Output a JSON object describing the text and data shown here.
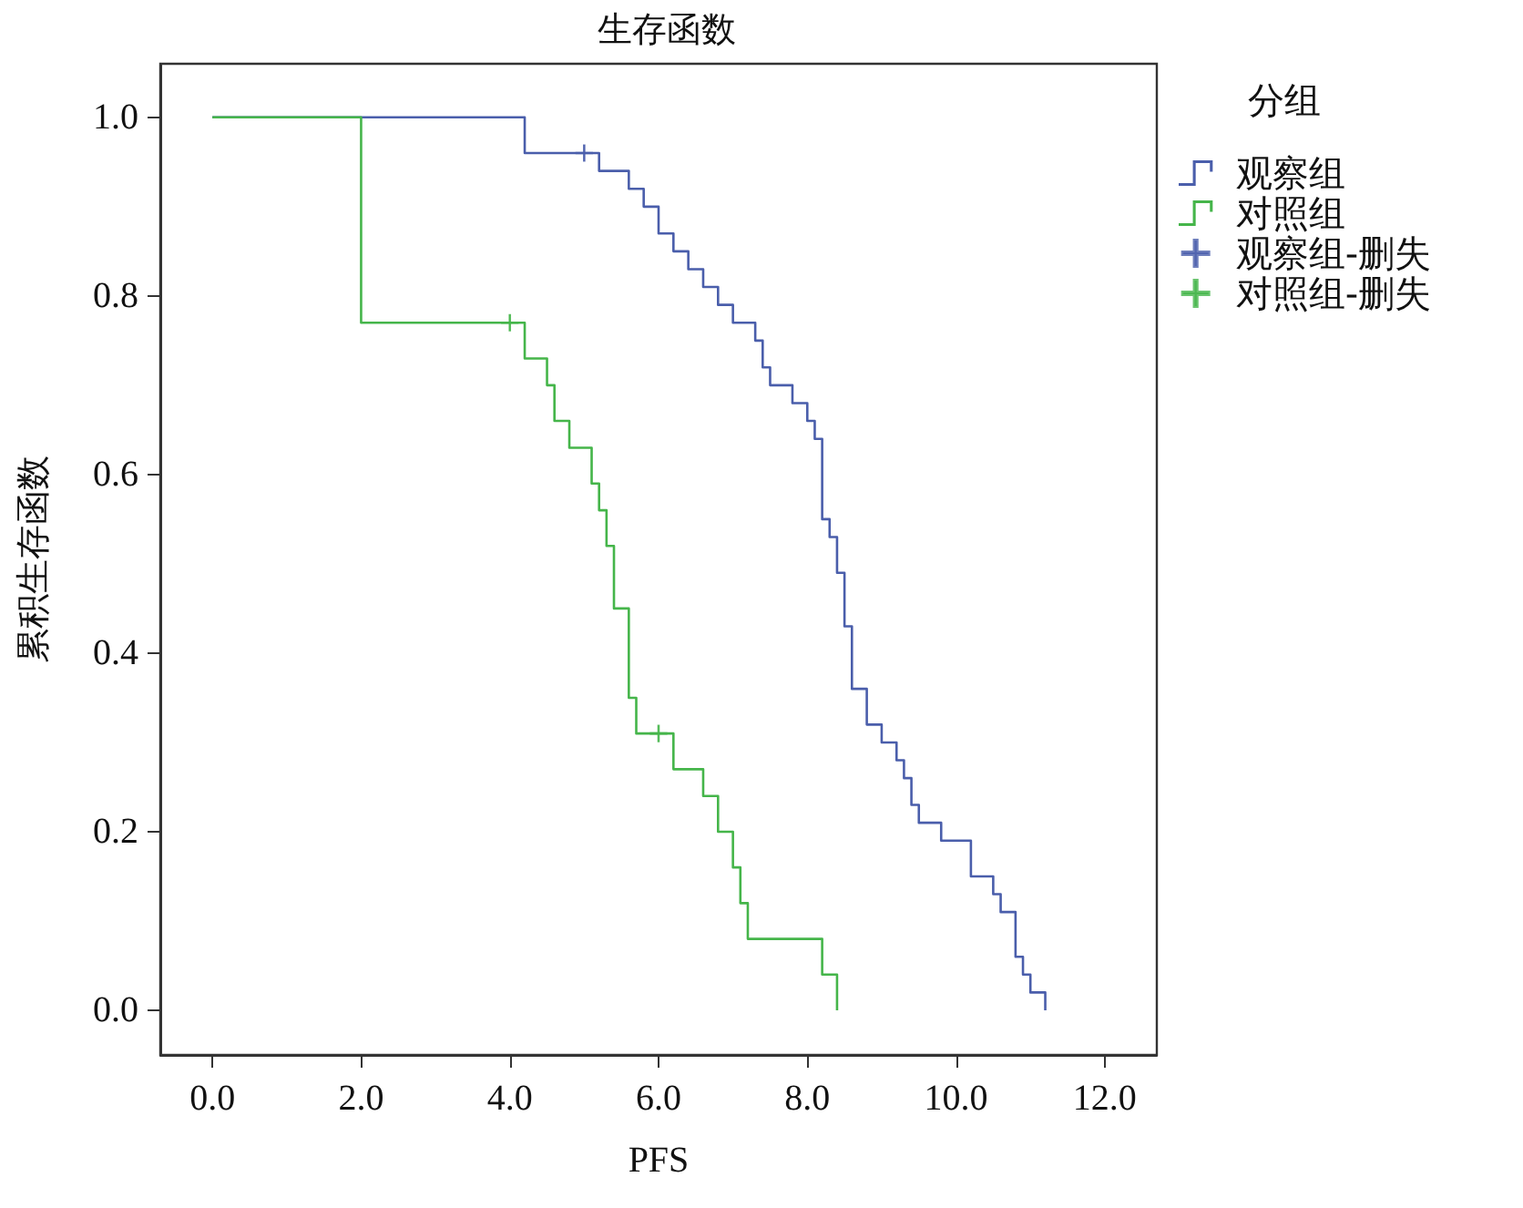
{
  "chart_data": {
    "type": "step",
    "title": "生存函数",
    "xlabel": "PFS",
    "ylabel": "累积生存函数",
    "legend_title": "分组",
    "legend": "top right",
    "grid": false,
    "xlim": [
      -0.7,
      12.7
    ],
    "ylim": [
      -0.05,
      1.06
    ],
    "xticks": [
      {
        "value": 0,
        "label": "0.0"
      },
      {
        "value": 2,
        "label": "2.0"
      },
      {
        "value": 4,
        "label": "4.0"
      },
      {
        "value": 6,
        "label": "6.0"
      },
      {
        "value": 8,
        "label": "8.0"
      },
      {
        "value": 10,
        "label": "10.0"
      },
      {
        "value": 12,
        "label": "12.0"
      }
    ],
    "yticks": [
      {
        "value": 0,
        "label": "0.0"
      },
      {
        "value": 0.2,
        "label": "0.2"
      },
      {
        "value": 0.4,
        "label": "0.4"
      },
      {
        "value": 0.6,
        "label": "0.6"
      },
      {
        "value": 0.8,
        "label": "0.8"
      },
      {
        "value": 1,
        "label": "1.0"
      }
    ],
    "series": [
      {
        "name": "观察组",
        "color": "#4a5eab",
        "x": [
          0,
          4.2,
          5.2,
          5.6,
          5.8,
          6.0,
          6.2,
          6.4,
          6.6,
          6.8,
          7.0,
          7.3,
          7.4,
          7.5,
          7.8,
          8.0,
          8.1,
          8.2,
          8.3,
          8.4,
          8.5,
          8.6,
          8.8,
          9.0,
          9.2,
          9.3,
          9.4,
          9.5,
          9.8,
          10.2,
          10.5,
          10.6,
          10.8,
          10.9,
          11.0,
          11.2
        ],
        "values": [
          1.0,
          0.96,
          0.94,
          0.92,
          0.9,
          0.87,
          0.85,
          0.83,
          0.81,
          0.79,
          0.77,
          0.75,
          0.72,
          0.7,
          0.68,
          0.66,
          0.64,
          0.55,
          0.53,
          0.49,
          0.43,
          0.36,
          0.32,
          0.3,
          0.28,
          0.26,
          0.23,
          0.21,
          0.19,
          0.15,
          0.13,
          0.11,
          0.06,
          0.04,
          0.02,
          0.0
        ]
      },
      {
        "name": "对照组",
        "color": "#45b54a",
        "x": [
          0,
          2.0,
          4.2,
          4.5,
          4.6,
          4.8,
          5.1,
          5.2,
          5.3,
          5.4,
          5.6,
          5.7,
          6.2,
          6.6,
          6.8,
          7.0,
          7.1,
          7.2,
          8.2,
          8.4
        ],
        "values": [
          1.0,
          0.77,
          0.73,
          0.7,
          0.66,
          0.63,
          0.59,
          0.56,
          0.52,
          0.45,
          0.35,
          0.31,
          0.27,
          0.24,
          0.2,
          0.16,
          0.12,
          0.08,
          0.04,
          0.0
        ]
      },
      {
        "name": "观察组-删失",
        "type": "scatter",
        "marker": "cross",
        "color": "#4a5eab",
        "x": [
          5.0
        ],
        "values": [
          0.96
        ]
      },
      {
        "name": "对照组-删失",
        "type": "scatter",
        "marker": "cross",
        "color": "#45b54a",
        "x": [
          4.0,
          6.0
        ],
        "values": [
          0.77,
          0.31
        ]
      }
    ]
  }
}
